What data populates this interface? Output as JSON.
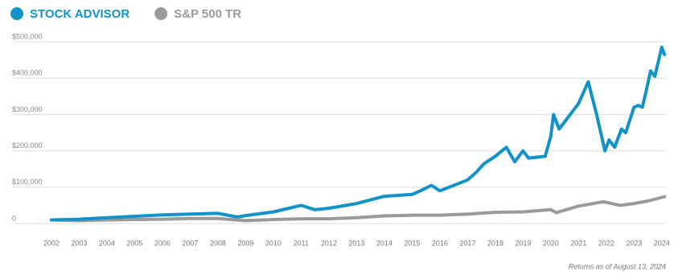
{
  "chart_data": {
    "type": "line",
    "series": [
      {
        "name": "STOCK ADVISOR",
        "color": "#1193c9",
        "x": [
          2002,
          2003,
          2004,
          2005,
          2006,
          2007,
          2008,
          2008.7,
          2009,
          2010,
          2011,
          2011.5,
          2012,
          2013,
          2014,
          2015,
          2015.3,
          2015.7,
          2016,
          2017,
          2017.3,
          2017.6,
          2018,
          2018.4,
          2018.7,
          2019,
          2019.2,
          2019.8,
          2020,
          2020.1,
          2020.3,
          2021,
          2021.35,
          2021.65,
          2021.95,
          2022.1,
          2022.3,
          2022.55,
          2022.7,
          2023,
          2023.15,
          2023.3,
          2023.45,
          2023.6,
          2023.75,
          2024,
          2024.1
        ],
        "values": [
          10000,
          12000,
          16000,
          20000,
          24000,
          26000,
          28000,
          18000,
          22000,
          32000,
          50000,
          38000,
          42000,
          55000,
          75000,
          80000,
          90000,
          105000,
          90000,
          120000,
          140000,
          165000,
          185000,
          210000,
          170000,
          200000,
          180000,
          185000,
          240000,
          300000,
          260000,
          330000,
          390000,
          300000,
          200000,
          230000,
          210000,
          260000,
          250000,
          320000,
          325000,
          320000,
          370000,
          420000,
          405000,
          485000,
          465000
        ]
      },
      {
        "name": "S&P 500 TR",
        "color": "#9a9a9a",
        "x": [
          2002,
          2003,
          2004,
          2005,
          2006,
          2007,
          2008,
          2009,
          2010,
          2011,
          2012,
          2013,
          2014,
          2015,
          2016,
          2017,
          2018,
          2019,
          2020,
          2020.2,
          2021,
          2021.9,
          2022.5,
          2023,
          2023.5,
          2024,
          2024.1
        ],
        "values": [
          10000,
          8000,
          10000,
          11000,
          12000,
          14000,
          14000,
          8000,
          11000,
          13000,
          13000,
          16000,
          21000,
          23000,
          23000,
          26000,
          31000,
          32000,
          38000,
          30000,
          48000,
          60000,
          50000,
          55000,
          62000,
          72000,
          74000
        ]
      }
    ],
    "xlim": [
      2001.8,
      2024.15
    ],
    "xticks": [
      2002,
      2003,
      2004,
      2005,
      2006,
      2007,
      2008,
      2009,
      2010,
      2011,
      2012,
      2013,
      2014,
      2015,
      2016,
      2017,
      2018,
      2019,
      2020,
      2021,
      2022,
      2023,
      2024
    ],
    "ylim": [
      0,
      500000
    ],
    "yticks": [
      0,
      {
        "value": 100000,
        "label": "$100,000"
      },
      {
        "value": 200000,
        "label": "$200,000"
      },
      {
        "value": 300000,
        "label": "$300,000"
      },
      {
        "value": 400000,
        "label": "$400,000"
      },
      {
        "value": 500000,
        "label": "$500,000"
      }
    ],
    "grid": true,
    "note": "Returns as of August 13, 2024"
  }
}
